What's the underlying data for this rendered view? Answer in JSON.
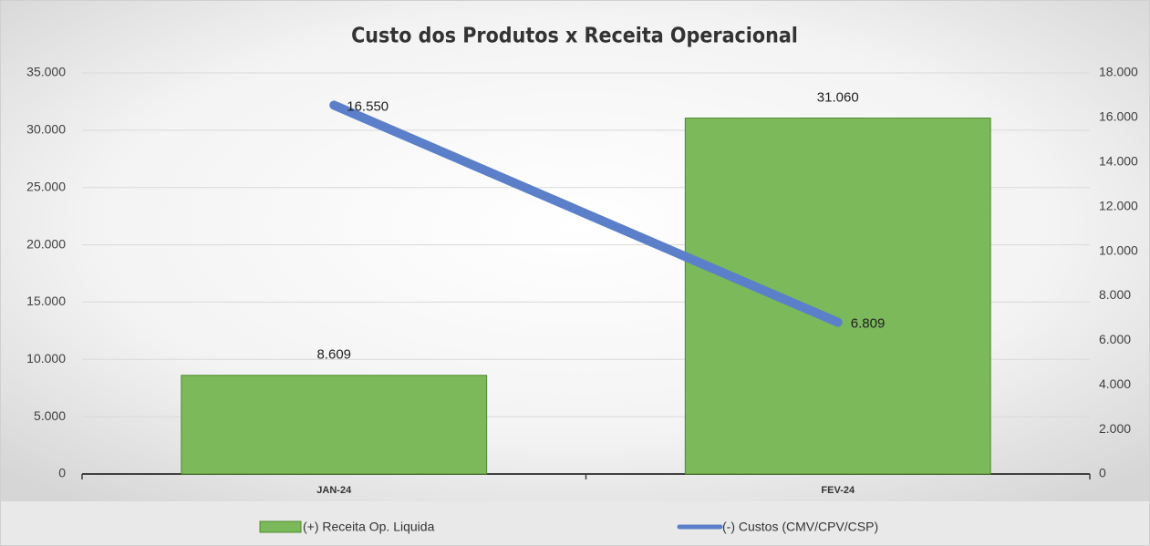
{
  "chart_data": {
    "type": "bar_line",
    "title": "Custo dos Produtos x Receita Operacional",
    "categories": [
      "JAN-24",
      "FEV-24"
    ],
    "series": [
      {
        "name": "(+) Receita Op. Liquida",
        "type": "bar",
        "color": "#7cb95a",
        "values": [
          8609,
          31060
        ],
        "value_labels": [
          "8.609",
          "31.060"
        ]
      },
      {
        "name": "(-) Custos (CMV/CPV/CSP)",
        "type": "line",
        "axis": "y2",
        "color": "#5b7fc9",
        "values": [
          16550,
          6809
        ],
        "value_labels": [
          "16.550",
          "6.809"
        ]
      }
    ],
    "ylim": [
      0,
      35000
    ],
    "yticks": [
      0,
      {
        "value": 5000,
        "label": "5.000"
      },
      {
        "value": 10000,
        "label": "10.000"
      },
      {
        "value": 15000,
        "label": "15.000"
      },
      {
        "value": 20000,
        "label": "20.000"
      },
      {
        "value": 25000,
        "label": "25.000"
      },
      {
        "value": 30000,
        "label": "30.000"
      },
      {
        "value": 35000,
        "label": "35.000"
      }
    ],
    "y2lim": [
      0,
      18000
    ],
    "y2ticks": [
      0,
      {
        "value": 2000,
        "label": "2.000"
      },
      {
        "value": 4000,
        "label": "4.000"
      },
      {
        "value": 6000,
        "label": "6.000"
      },
      {
        "value": 8000,
        "label": "8.000"
      },
      {
        "value": 10000,
        "label": "10.000"
      },
      {
        "value": 12000,
        "label": "12.000"
      },
      {
        "value": 14000,
        "label": "14.000"
      },
      {
        "value": 16000,
        "label": "16.000"
      },
      {
        "value": 18000,
        "label": "18.000"
      }
    ],
    "grid": true,
    "legend": "bottom"
  }
}
